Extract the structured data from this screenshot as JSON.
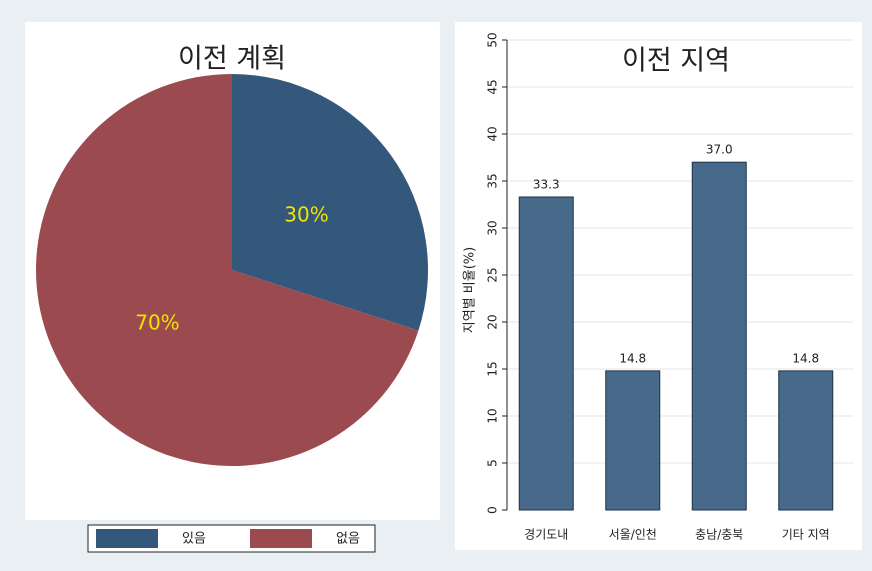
{
  "chart_data": [
    {
      "type": "pie",
      "title": "이전 계획",
      "categories": [
        "있음",
        "없음"
      ],
      "values": [
        30,
        70
      ],
      "value_labels": [
        "30%",
        "70%"
      ],
      "colors": [
        "#34587c",
        "#9b4a4f"
      ],
      "label_color": "#f2e200",
      "legend": "bottom"
    },
    {
      "type": "bar",
      "title": "이전 지역",
      "ylabel": "지역별 비율(%)",
      "categories": [
        "경기도내",
        "서울/인천",
        "충남/충북",
        "기타 지역"
      ],
      "values": [
        33.3,
        14.8,
        37.0,
        14.8
      ],
      "value_labels": [
        "33.3",
        "14.8",
        "37.0",
        "14.8"
      ],
      "color": "#476a8a",
      "ylim": [
        0,
        50
      ],
      "yticks": [
        0,
        5,
        10,
        15,
        20,
        25,
        30,
        35,
        40,
        45,
        50
      ],
      "grid": true
    }
  ]
}
